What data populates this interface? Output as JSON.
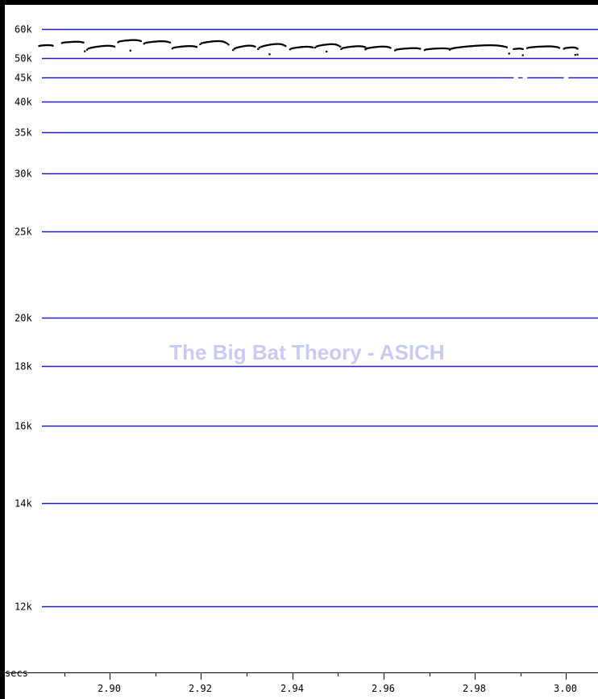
{
  "chart_data": {
    "type": "scatter",
    "title": "",
    "xlabel": "secs",
    "ylabel": "",
    "xlim": [
      2.877,
      3.007
    ],
    "ylim": [
      10000,
      62000
    ],
    "y_scale": "reciprocal",
    "grid": {
      "horizontal": true,
      "vertical": false
    },
    "y_ticks": [
      {
        "value": 60000,
        "label": "60k"
      },
      {
        "value": 50000,
        "label": "50k"
      },
      {
        "value": 45000,
        "label": "45k"
      },
      {
        "value": 40000,
        "label": "40k"
      },
      {
        "value": 35000,
        "label": "35k"
      },
      {
        "value": 30000,
        "label": "30k"
      },
      {
        "value": 25000,
        "label": "25k"
      },
      {
        "value": 20000,
        "label": "20k"
      },
      {
        "value": 18000,
        "label": "18k"
      },
      {
        "value": 16000,
        "label": "16k"
      },
      {
        "value": 14000,
        "label": "14k"
      },
      {
        "value": 12000,
        "label": "12k"
      }
    ],
    "x_ticks": [
      {
        "value": 2.9,
        "label": "2.90"
      },
      {
        "value": 2.92,
        "label": "2.92"
      },
      {
        "value": 2.94,
        "label": "2.94"
      },
      {
        "value": 2.96,
        "label": "2.96"
      },
      {
        "value": 2.98,
        "label": "2.98"
      },
      {
        "value": 3.0,
        "label": "3.00"
      }
    ],
    "x_minor_ticks": [
      2.89,
      2.91,
      2.93,
      2.95,
      2.97,
      2.99
    ],
    "calls": [
      {
        "x0": 2.8845,
        "x1": 2.8875,
        "y0": 53700,
        "y1": 54100,
        "drop": 53800
      },
      {
        "x0": 2.8895,
        "x1": 2.8942,
        "y0": 54700,
        "y1": 55300,
        "drop": 54900
      },
      {
        "x0": 2.895,
        "x1": 2.901,
        "y0": 52500,
        "y1": 54100,
        "drop": 53500
      },
      {
        "x0": 2.9018,
        "x1": 2.9068,
        "y0": 55000,
        "y1": 56000,
        "drop": 55400
      },
      {
        "x0": 2.9075,
        "x1": 2.9132,
        "y0": 54500,
        "y1": 55600,
        "drop": 54900
      },
      {
        "x0": 2.9137,
        "x1": 2.919,
        "y0": 52900,
        "y1": 53900,
        "drop": 53400
      },
      {
        "x0": 2.9198,
        "x1": 2.926,
        "y0": 54300,
        "y1": 55800,
        "drop": 54200
      },
      {
        "x0": 2.927,
        "x1": 2.9318,
        "y0": 52400,
        "y1": 54200,
        "drop": 53500
      },
      {
        "x0": 2.9325,
        "x1": 2.9385,
        "y0": 52700,
        "y1": 54900,
        "drop": 53700
      },
      {
        "x0": 2.9395,
        "x1": 2.9445,
        "y0": 52600,
        "y1": 53700,
        "drop": 53200
      },
      {
        "x0": 2.945,
        "x1": 2.9505,
        "y0": 53200,
        "y1": 54700,
        "drop": 53500
      },
      {
        "x0": 2.9507,
        "x1": 2.956,
        "y0": 52700,
        "y1": 53900,
        "drop": 53300
      },
      {
        "x0": 2.956,
        "x1": 2.9615,
        "y0": 52600,
        "y1": 53800,
        "drop": 53100
      },
      {
        "x0": 2.9625,
        "x1": 2.968,
        "y0": 52300,
        "y1": 53200,
        "drop": 52800
      },
      {
        "x0": 2.969,
        "x1": 2.9745,
        "y0": 52400,
        "y1": 53100,
        "drop": 52700
      },
      {
        "x0": 2.9745,
        "x1": 2.987,
        "y0": 52500,
        "y1": 54400,
        "drop": 53300
      },
      {
        "x0": 2.9885,
        "x1": 2.9905,
        "y0": 52700,
        "y1": 52900,
        "drop": 52700
      },
      {
        "x0": 2.9915,
        "x1": 2.9985,
        "y0": 53000,
        "y1": 53800,
        "drop": 53100
      },
      {
        "x0": 2.9995,
        "x1": 3.0025,
        "y0": 52800,
        "y1": 53400,
        "drop": 52800
      }
    ],
    "isolated_points": [
      [
        2.8945,
        52000
      ],
      [
        2.9045,
        52200
      ],
      [
        2.935,
        51100
      ],
      [
        2.9475,
        51900
      ],
      [
        2.9875,
        51300
      ],
      [
        2.9905,
        50800
      ],
      [
        3.002,
        50900
      ],
      [
        3.0025,
        51000
      ]
    ],
    "gaps_45k": [
      [
        2.9885,
        2.9895
      ],
      [
        2.9905,
        2.9915
      ],
      [
        2.9995,
        3.0005
      ]
    ]
  },
  "watermark": {
    "text": "The Big Bat Theory - ASICH",
    "color": "#c8ccf4"
  },
  "colors": {
    "gridline": "#2020c8",
    "points": "#000000",
    "background": "#ffffff",
    "border": "#000000"
  }
}
